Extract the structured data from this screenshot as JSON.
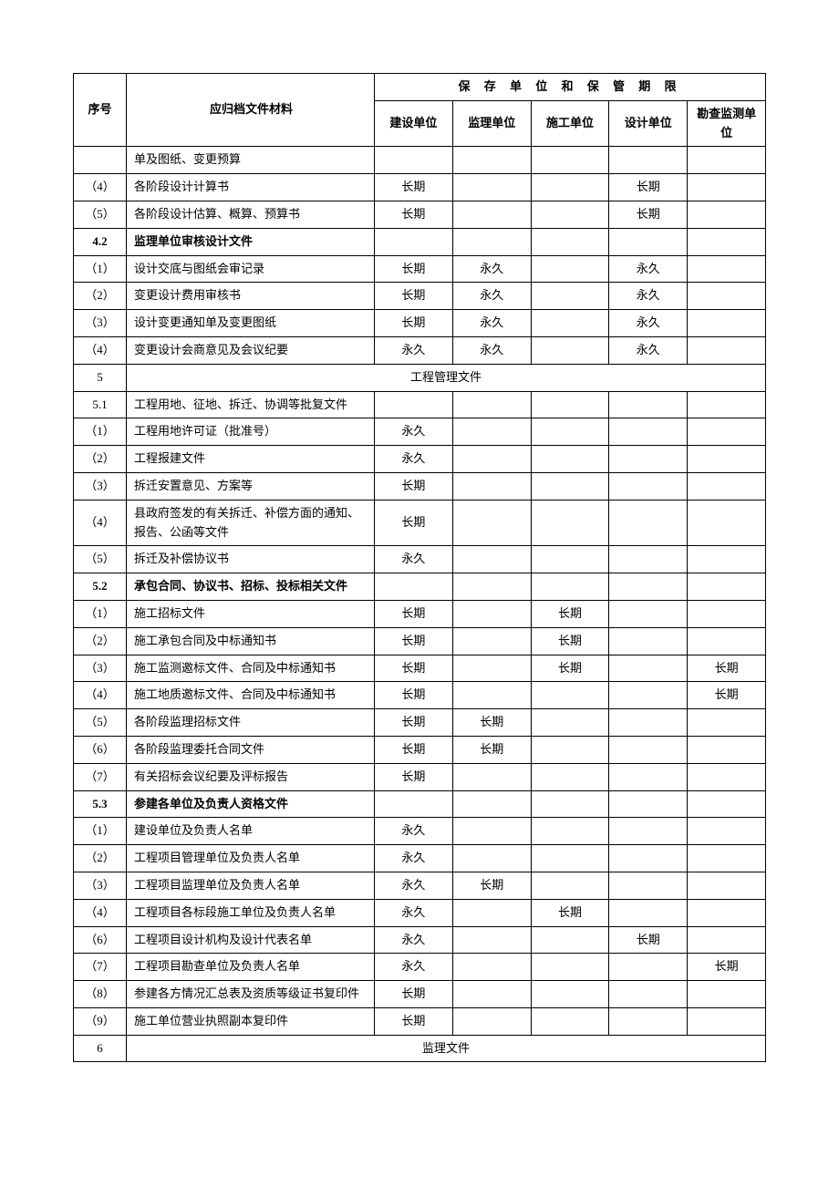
{
  "headers": {
    "seq": "序号",
    "desc": "应归档文件材料",
    "storage_span": "保 存 单 位 和 保 管 期 限",
    "unit1": "建设单位",
    "unit2": "监理单位",
    "unit3": "施工单位",
    "unit4": "设计单位",
    "unit5": "勘查监测单位"
  },
  "rows": [
    {
      "seq": "",
      "desc": "单及图纸、变更预算",
      "c1": "",
      "c2": "",
      "c3": "",
      "c4": "",
      "c5": ""
    },
    {
      "seq": "（4）",
      "desc": "各阶段设计计算书",
      "c1": "长期",
      "c2": "",
      "c3": "",
      "c4": "长期",
      "c5": ""
    },
    {
      "seq": "（5）",
      "desc": "各阶段设计估算、概算、预算书",
      "c1": "长期",
      "c2": "",
      "c3": "",
      "c4": "长期",
      "c5": ""
    },
    {
      "seq": "4.2",
      "desc": "监理单位审核设计文件",
      "c1": "",
      "c2": "",
      "c3": "",
      "c4": "",
      "c5": "",
      "bold": true
    },
    {
      "seq": "（1）",
      "desc": "设计交底与图纸会审记录",
      "c1": "长期",
      "c2": "永久",
      "c3": "",
      "c4": "永久",
      "c5": ""
    },
    {
      "seq": "（2）",
      "desc": "变更设计费用审核书",
      "c1": "长期",
      "c2": "永久",
      "c3": "",
      "c4": "永久",
      "c5": ""
    },
    {
      "seq": "（3）",
      "desc": "设计变更通知单及变更图纸",
      "c1": "长期",
      "c2": "永久",
      "c3": "",
      "c4": "永久",
      "c5": ""
    },
    {
      "seq": "（4）",
      "desc": "变更设计会商意见及会议纪要",
      "c1": "永久",
      "c2": "永久",
      "c3": "",
      "c4": "永久",
      "c5": ""
    },
    {
      "seq": "5",
      "section": "工程管理文件",
      "spanned": true
    },
    {
      "seq": "5.1",
      "desc": "工程用地、征地、拆迁、协调等批复文件",
      "c1": "",
      "c2": "",
      "c3": "",
      "c4": "",
      "c5": ""
    },
    {
      "seq": "（1）",
      "desc": "工程用地许可证（批准号）",
      "c1": "永久",
      "c2": "",
      "c3": "",
      "c4": "",
      "c5": ""
    },
    {
      "seq": "（2）",
      "desc": "工程报建文件",
      "c1": "永久",
      "c2": "",
      "c3": "",
      "c4": "",
      "c5": ""
    },
    {
      "seq": "（3）",
      "desc": "拆迁安置意见、方案等",
      "c1": "长期",
      "c2": "",
      "c3": "",
      "c4": "",
      "c5": ""
    },
    {
      "seq": "（4）",
      "desc": "县政府签发的有关拆迁、补偿方面的通知、报告、公函等文件",
      "c1": "长期",
      "c2": "",
      "c3": "",
      "c4": "",
      "c5": ""
    },
    {
      "seq": "（5）",
      "desc": "拆迁及补偿协议书",
      "c1": "永久",
      "c2": "",
      "c3": "",
      "c4": "",
      "c5": ""
    },
    {
      "seq": "5.2",
      "desc": "承包合同、协议书、招标、投标相关文件",
      "c1": "",
      "c2": "",
      "c3": "",
      "c4": "",
      "c5": "",
      "bold": true
    },
    {
      "seq": "（1）",
      "desc": "施工招标文件",
      "c1": "长期",
      "c2": "",
      "c3": "长期",
      "c4": "",
      "c5": ""
    },
    {
      "seq": "（2）",
      "desc": "施工承包合同及中标通知书",
      "c1": "长期",
      "c2": "",
      "c3": "长期",
      "c4": "",
      "c5": ""
    },
    {
      "seq": "（3）",
      "desc": "施工监测邀标文件、合同及中标通知书",
      "c1": "长期",
      "c2": "",
      "c3": "长期",
      "c4": "",
      "c5": "长期"
    },
    {
      "seq": "（4）",
      "desc": "施工地质邀标文件、合同及中标通知书",
      "c1": "长期",
      "c2": "",
      "c3": "",
      "c4": "",
      "c5": "长期"
    },
    {
      "seq": "（5）",
      "desc": "各阶段监理招标文件",
      "c1": "长期",
      "c2": "长期",
      "c3": "",
      "c4": "",
      "c5": ""
    },
    {
      "seq": "（6）",
      "desc": "各阶段监理委托合同文件",
      "c1": "长期",
      "c2": "长期",
      "c3": "",
      "c4": "",
      "c5": ""
    },
    {
      "seq": "（7）",
      "desc": "有关招标会议纪要及评标报告",
      "c1": "长期",
      "c2": "",
      "c3": "",
      "c4": "",
      "c5": ""
    },
    {
      "seq": "5.3",
      "desc": "参建各单位及负责人资格文件",
      "c1": "",
      "c2": "",
      "c3": "",
      "c4": "",
      "c5": "",
      "bold": true
    },
    {
      "seq": "（1）",
      "desc": "建设单位及负责人名单",
      "c1": "永久",
      "c2": "",
      "c3": "",
      "c4": "",
      "c5": ""
    },
    {
      "seq": "（2）",
      "desc": "工程项目管理单位及负责人名单",
      "c1": "永久",
      "c2": "",
      "c3": "",
      "c4": "",
      "c5": ""
    },
    {
      "seq": "（3）",
      "desc": "工程项目监理单位及负责人名单",
      "c1": "永久",
      "c2": "长期",
      "c3": "",
      "c4": "",
      "c5": ""
    },
    {
      "seq": "（4）",
      "desc": "工程项目各标段施工单位及负责人名单",
      "c1": "永久",
      "c2": "",
      "c3": "长期",
      "c4": "",
      "c5": ""
    },
    {
      "seq": "（6）",
      "desc": "工程项目设计机构及设计代表名单",
      "c1": "永久",
      "c2": "",
      "c3": "",
      "c4": "长期",
      "c5": ""
    },
    {
      "seq": "（7）",
      "desc": "工程项目勘查单位及负责人名单",
      "c1": "永久",
      "c2": "",
      "c3": "",
      "c4": "",
      "c5": "长期"
    },
    {
      "seq": "（8）",
      "desc": "参建各方情况汇总表及资质等级证书复印件",
      "c1": "长期",
      "c2": "",
      "c3": "",
      "c4": "",
      "c5": ""
    },
    {
      "seq": "（9）",
      "desc": "施工单位营业执照副本复印件",
      "c1": "长期",
      "c2": "",
      "c3": "",
      "c4": "",
      "c5": ""
    },
    {
      "seq": "6",
      "section": "监理文件",
      "spanned": true
    }
  ]
}
